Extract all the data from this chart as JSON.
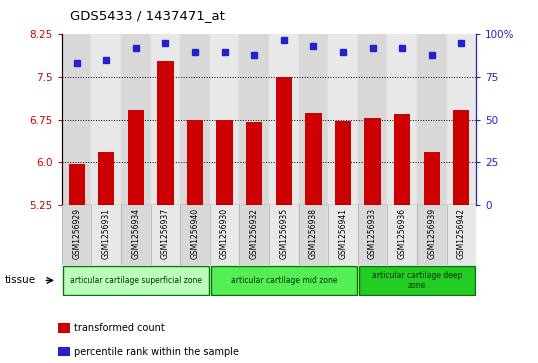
{
  "title": "GDS5433 / 1437471_at",
  "samples": [
    "GSM1256929",
    "GSM1256931",
    "GSM1256934",
    "GSM1256937",
    "GSM1256940",
    "GSM1256930",
    "GSM1256932",
    "GSM1256935",
    "GSM1256938",
    "GSM1256941",
    "GSM1256933",
    "GSM1256936",
    "GSM1256939",
    "GSM1256942"
  ],
  "transformed_count": [
    5.97,
    6.18,
    6.92,
    7.79,
    6.74,
    6.75,
    6.71,
    7.5,
    6.87,
    6.72,
    6.78,
    6.86,
    6.18,
    6.92
  ],
  "percentile_rank": [
    83,
    85,
    92,
    95,
    90,
    90,
    88,
    97,
    93,
    90,
    92,
    92,
    88,
    95
  ],
  "bar_color": "#cc0000",
  "dot_color": "#2222cc",
  "ylim_left": [
    5.25,
    8.25
  ],
  "ylim_right": [
    0,
    100
  ],
  "yticks_left": [
    5.25,
    6.0,
    6.75,
    7.5,
    8.25
  ],
  "yticks_right": [
    0,
    25,
    50,
    75,
    100
  ],
  "ytick_right_labels": [
    "0",
    "25",
    "50",
    "75",
    "100%"
  ],
  "hlines": [
    6.0,
    6.75,
    7.5
  ],
  "groups": [
    {
      "label": "articular cartilage superficial zone",
      "start": 0,
      "end": 5,
      "color": "#bbffbb"
    },
    {
      "label": "articular cartilage mid zone",
      "start": 5,
      "end": 10,
      "color": "#55ee55"
    },
    {
      "label": "articular cartilage deep\nzone",
      "start": 10,
      "end": 14,
      "color": "#22cc22"
    }
  ],
  "tissue_label": "tissue",
  "legend_items": [
    {
      "color": "#cc0000",
      "label": "transformed count"
    },
    {
      "color": "#2222cc",
      "label": "percentile rank within the sample"
    }
  ],
  "bar_width": 0.55,
  "col_colors": [
    "#d8d8d8",
    "#e8e8e8"
  ],
  "tick_color_left": "#cc0000",
  "tick_color_right": "#2222cc"
}
